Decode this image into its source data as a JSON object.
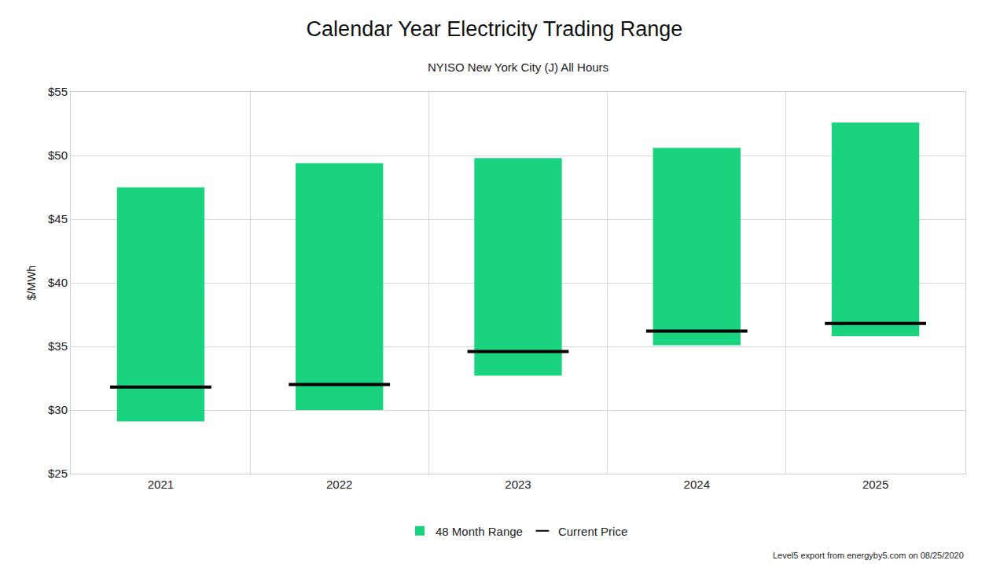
{
  "chart_data": {
    "type": "bar",
    "title": "Calendar Year Electricity Trading Range",
    "subtitle": "NYISO New York City (J) All Hours",
    "y_label": "$/MWh",
    "categories": [
      "2021",
      "2022",
      "2023",
      "2024",
      "2025"
    ],
    "series": [
      {
        "name": "48 Month Range",
        "type": "bar",
        "color": "#1ad37f",
        "low": [
          29.1,
          30.0,
          32.7,
          35.1,
          35.8
        ],
        "high": [
          47.5,
          49.4,
          49.8,
          50.6,
          52.6
        ]
      },
      {
        "name": "Current Price",
        "type": "line",
        "marker": "dash",
        "color": "#000000",
        "values": [
          31.8,
          32.0,
          34.6,
          36.2,
          36.8
        ]
      }
    ],
    "ylim": [
      25,
      55
    ],
    "yticks": [
      {
        "value": 25,
        "label": "$25"
      },
      {
        "value": 30,
        "label": "$30"
      },
      {
        "value": 35,
        "label": "$35"
      },
      {
        "value": 40,
        "label": "$40"
      },
      {
        "value": 45,
        "label": "$45"
      },
      {
        "value": 50,
        "label": "$50"
      },
      {
        "value": 55,
        "label": "$55"
      }
    ],
    "grid": true,
    "legend": "bottom",
    "note": "Level5 export from energyby5.com on 08/25/2020"
  }
}
